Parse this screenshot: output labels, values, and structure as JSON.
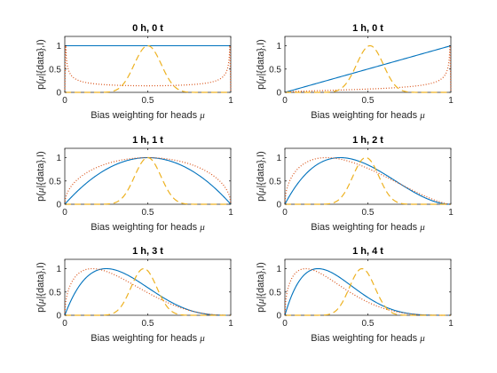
{
  "chart_data": [
    {
      "type": "line",
      "title": "0 h, 0 t",
      "heads": 0,
      "tails": 0,
      "xlabel_text": "Bias weighting for heads ",
      "xlabel_symbol": "μ",
      "ylabel_pre": "p(",
      "ylabel_symbol": "μ",
      "ylabel_post": "|{data},I)",
      "xlim": [
        0,
        1
      ],
      "ylim": [
        0,
        1.2
      ],
      "xticks": [
        "0",
        "0.5",
        "1"
      ],
      "yticks": [
        "0",
        "0.5",
        "1"
      ],
      "series": [
        {
          "style": "solid",
          "color": "#0072BD"
        },
        {
          "style": "dotted",
          "color": "#D95319"
        },
        {
          "style": "dashed",
          "color": "#EDB120"
        }
      ]
    },
    {
      "type": "line",
      "title": "1 h, 0 t",
      "heads": 1,
      "tails": 0,
      "xlabel_text": "Bias weighting for heads ",
      "xlabel_symbol": "μ",
      "ylabel_pre": "p(",
      "ylabel_symbol": "μ",
      "ylabel_post": "|{data},I)",
      "xlim": [
        0,
        1
      ],
      "ylim": [
        0,
        1.2
      ],
      "xticks": [
        "0",
        "0.5",
        "1"
      ],
      "yticks": [
        "0",
        "0.5",
        "1"
      ],
      "series": [
        {
          "style": "solid",
          "color": "#0072BD"
        },
        {
          "style": "dotted",
          "color": "#D95319"
        },
        {
          "style": "dashed",
          "color": "#EDB120"
        }
      ]
    },
    {
      "type": "line",
      "title": "1 h, 1 t",
      "heads": 1,
      "tails": 1,
      "xlabel_text": "Bias weighting for heads ",
      "xlabel_symbol": "μ",
      "ylabel_pre": "p(",
      "ylabel_symbol": "μ",
      "ylabel_post": "|{data},I)",
      "xlim": [
        0,
        1
      ],
      "ylim": [
        0,
        1.2
      ],
      "xticks": [
        "0",
        "0.5",
        "1"
      ],
      "yticks": [
        "0",
        "0.5",
        "1"
      ],
      "series": [
        {
          "style": "solid",
          "color": "#0072BD"
        },
        {
          "style": "dotted",
          "color": "#D95319"
        },
        {
          "style": "dashed",
          "color": "#EDB120"
        }
      ]
    },
    {
      "type": "line",
      "title": "1 h, 2 t",
      "heads": 1,
      "tails": 2,
      "xlabel_text": "Bias weighting for heads ",
      "xlabel_symbol": "μ",
      "ylabel_pre": "p(",
      "ylabel_symbol": "μ",
      "ylabel_post": "|{data},I)",
      "xlim": [
        0,
        1
      ],
      "ylim": [
        0,
        1.2
      ],
      "xticks": [
        "0",
        "0.5",
        "1"
      ],
      "yticks": [
        "0",
        "0.5",
        "1"
      ],
      "series": [
        {
          "style": "solid",
          "color": "#0072BD"
        },
        {
          "style": "dotted",
          "color": "#D95319"
        },
        {
          "style": "dashed",
          "color": "#EDB120"
        }
      ]
    },
    {
      "type": "line",
      "title": "1 h, 3 t",
      "heads": 1,
      "tails": 3,
      "xlabel_text": "Bias weighting for heads ",
      "xlabel_symbol": "μ",
      "ylabel_pre": "p(",
      "ylabel_symbol": "μ",
      "ylabel_post": "|{data},I)",
      "xlim": [
        0,
        1
      ],
      "ylim": [
        0,
        1.2
      ],
      "xticks": [
        "0",
        "0.5",
        "1"
      ],
      "yticks": [
        "0",
        "0.5",
        "1"
      ],
      "series": [
        {
          "style": "solid",
          "color": "#0072BD"
        },
        {
          "style": "dotted",
          "color": "#D95319"
        },
        {
          "style": "dashed",
          "color": "#EDB120"
        }
      ]
    },
    {
      "type": "line",
      "title": "1 h, 4 t",
      "heads": 1,
      "tails": 4,
      "xlabel_text": "Bias weighting for heads ",
      "xlabel_symbol": "μ",
      "ylabel_pre": "p(",
      "ylabel_symbol": "μ",
      "ylabel_post": "|{data},I)",
      "xlim": [
        0,
        1
      ],
      "ylim": [
        0,
        1.2
      ],
      "xticks": [
        "0",
        "0.5",
        "1"
      ],
      "yticks": [
        "0",
        "0.5",
        "1"
      ],
      "series": [
        {
          "style": "solid",
          "color": "#0072BD"
        },
        {
          "style": "dotted",
          "color": "#D95319"
        },
        {
          "style": "dashed",
          "color": "#EDB120"
        }
      ]
    }
  ]
}
